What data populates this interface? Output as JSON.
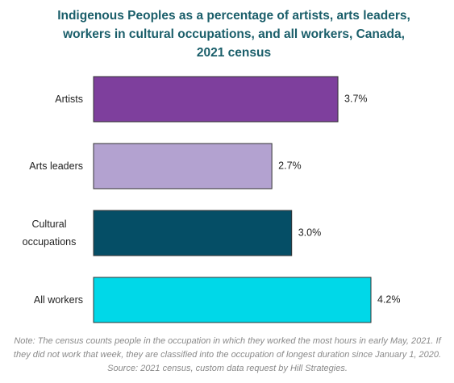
{
  "chart_data": {
    "type": "bar",
    "orientation": "horizontal",
    "title": "Indigenous Peoples as a percentage of artists, arts leaders, workers in cultural occupations, and all workers, Canada, 2021 census",
    "categories": [
      "Artists",
      "Arts leaders",
      "Cultural occupations",
      "All workers"
    ],
    "values": [
      3.7,
      2.7,
      3.0,
      4.2
    ],
    "value_labels": [
      "3.7%",
      "2.7%",
      "3.0%",
      "4.2%"
    ],
    "colors": [
      "#7e3f9d",
      "#b3a2d0",
      "#054e66",
      "#00d8e8"
    ],
    "note": "Note: The census counts people in the occupation in which they worked the most hours in early May, 2021.  If they did not work that week, they are classified into the occupation of longest duration since January 1, 2020.  Source: 2021  census, custom data request by Hill Strategies."
  }
}
